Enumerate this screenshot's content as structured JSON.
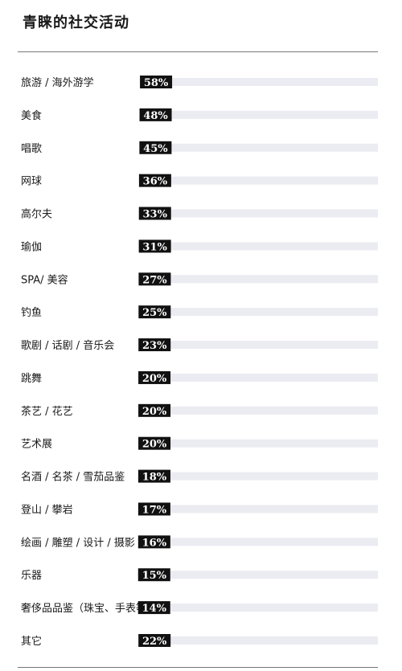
{
  "chart_data": {
    "type": "bar",
    "orientation": "horizontal",
    "title": "青睐的社交活动",
    "categories": [
      "旅游 / 海外游学",
      "美食",
      "唱歌",
      "网球",
      "高尔夫",
      "瑜伽",
      "SPA/ 美容",
      "钓鱼",
      "歌剧 / 话剧 / 音乐会",
      "跳舞",
      "茶艺 / 花艺",
      "艺术展",
      "名酒 / 名茶 / 雪茄品鉴",
      "登山 / 攀岩",
      "绘画 / 雕塑 / 设计 / 摄影",
      "乐器",
      "奢侈品品鉴（珠宝、手表等）",
      "其它"
    ],
    "values": [
      58,
      48,
      45,
      36,
      33,
      31,
      27,
      25,
      23,
      20,
      20,
      20,
      18,
      17,
      16,
      15,
      14,
      22
    ],
    "value_labels": [
      "58%",
      "48%",
      "45%",
      "36%",
      "33%",
      "31%",
      "27%",
      "25%",
      "23%",
      "20%",
      "20%",
      "20%",
      "18%",
      "17%",
      "16%",
      "15%",
      "14%",
      "22%"
    ],
    "xlim": [
      0,
      100
    ],
    "grid": false,
    "colors": {
      "bar": "#2e6b3c",
      "stripe": "#7fa68a",
      "track": "#ebebf2",
      "label_bg": "#111111"
    }
  }
}
